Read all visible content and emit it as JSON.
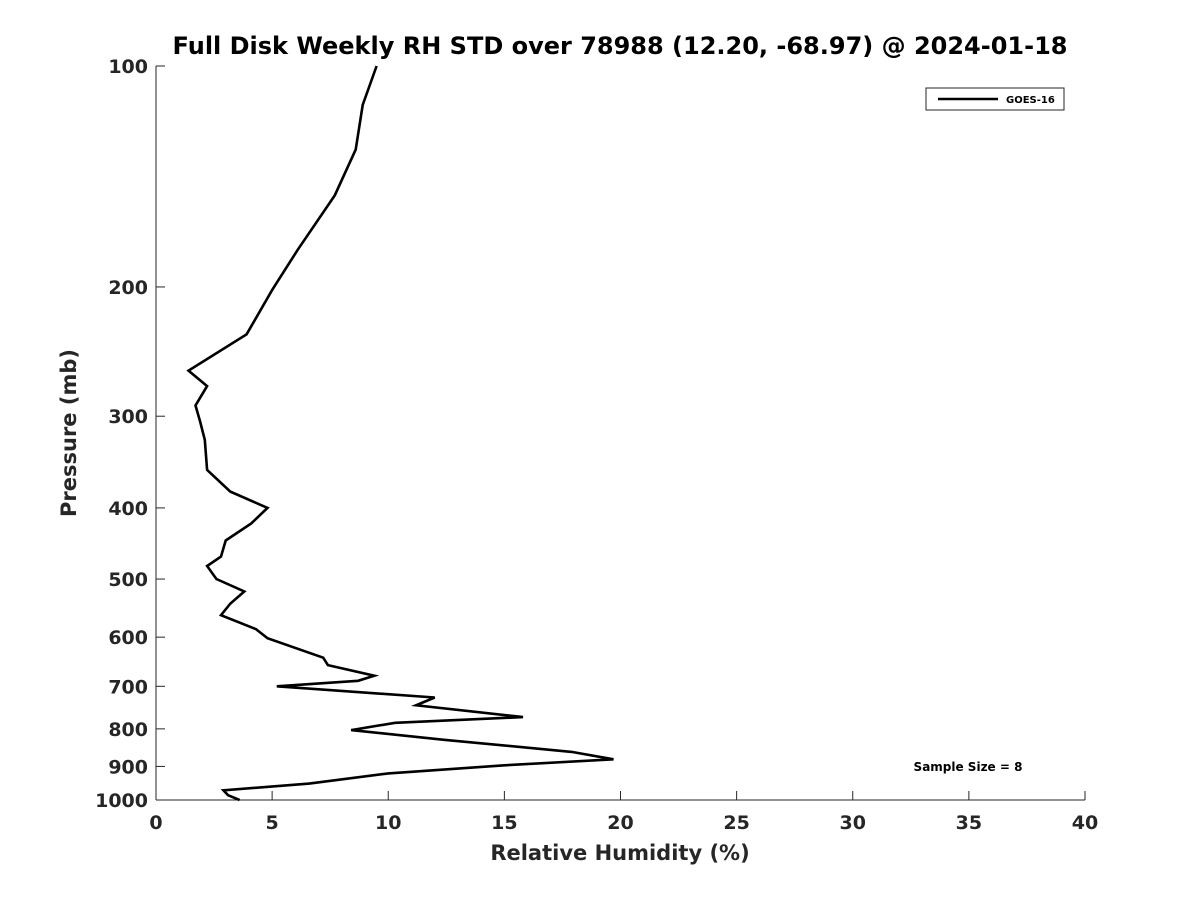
{
  "chart_data": {
    "type": "line",
    "title": "Full Disk Weekly RH STD over 78988 (12.20, -68.97) @ 2024-01-18",
    "xlabel": "Relative Humidity (%)",
    "ylabel": "Pressure (mb)",
    "xlim": [
      0,
      40
    ],
    "ylim": [
      100,
      1000
    ],
    "y_scale": "log",
    "y_direction": "reversed",
    "x_ticks": [
      0,
      5,
      10,
      15,
      20,
      25,
      30,
      35,
      40
    ],
    "y_ticks": [
      100,
      200,
      300,
      400,
      500,
      600,
      700,
      800,
      900,
      1000
    ],
    "grid": false,
    "legend_position": "top-right",
    "annotation": "Sample Size = 8",
    "series": [
      {
        "name": "GOES-16",
        "color": "#000000",
        "x": [
          9.5,
          8.9,
          8.6,
          7.7,
          6.1,
          5.0,
          3.9,
          1.4,
          2.2,
          1.7,
          1.9,
          2.1,
          2.2,
          3.2,
          4.8,
          4.1,
          3.0,
          2.8,
          2.2,
          2.6,
          3.8,
          3.2,
          2.8,
          4.3,
          4.8,
          7.2,
          7.4,
          9.4,
          8.7,
          5.2,
          12.0,
          11.2,
          15.8,
          10.3,
          8.4,
          12.4,
          17.9,
          19.7,
          15.0,
          10.0,
          6.6,
          2.9,
          3.1,
          3.6
        ],
        "y": [
          100,
          113,
          130,
          150,
          178,
          202,
          232,
          260,
          273,
          290,
          305,
          323,
          355,
          380,
          400,
          420,
          443,
          466,
          480,
          500,
          520,
          540,
          560,
          585,
          602,
          640,
          655,
          677,
          688,
          700,
          725,
          743,
          771,
          785,
          803,
          828,
          860,
          880,
          897,
          920,
          950,
          970,
          985,
          1000
        ]
      }
    ]
  }
}
